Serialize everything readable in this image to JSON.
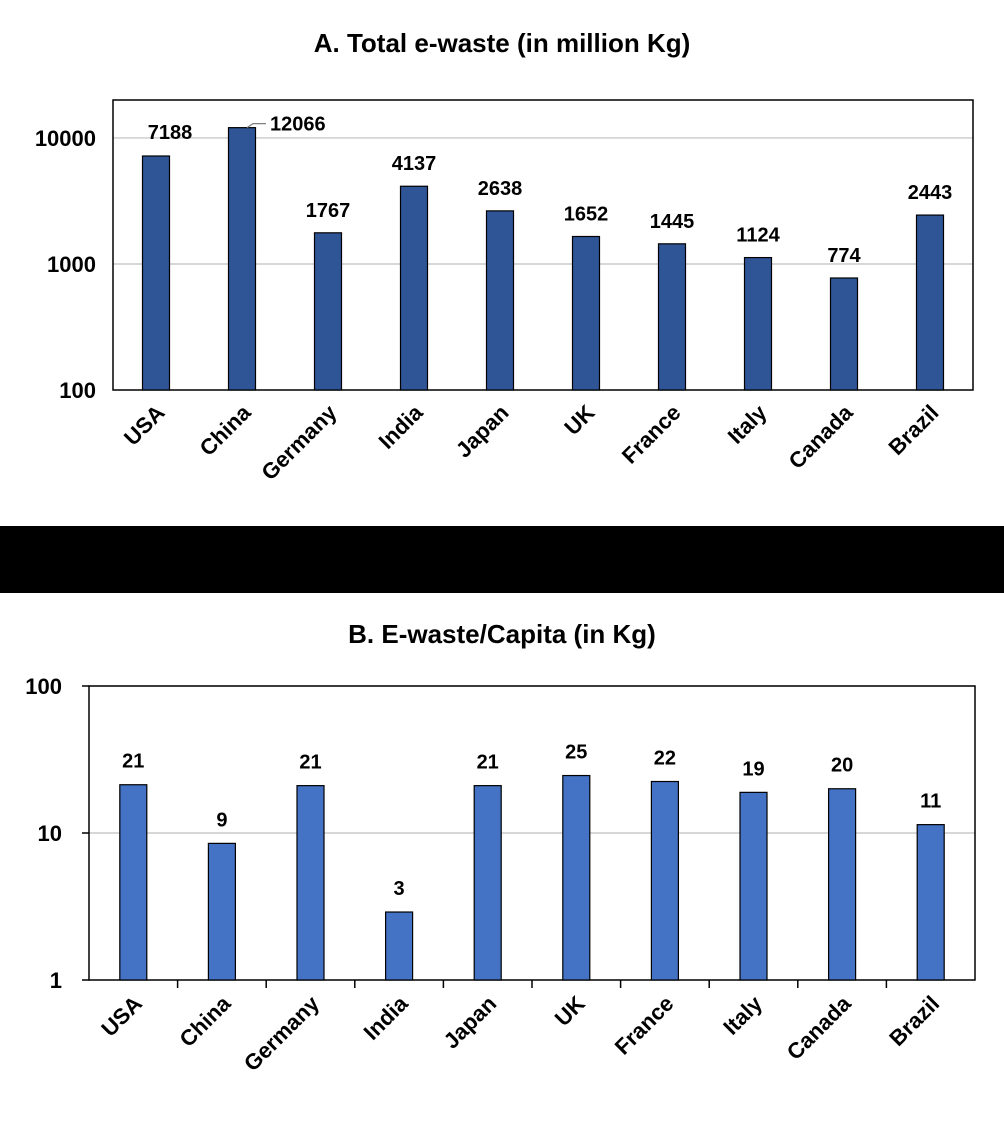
{
  "chart_data": [
    {
      "type": "bar",
      "title": "A.  Total e-waste (in million Kg)",
      "yscale": "log",
      "ylim": [
        100,
        20000
      ],
      "yticks": [
        "10000",
        "1000",
        "100"
      ],
      "ytick_values": [
        10000,
        1000,
        100
      ],
      "categories": [
        "USA",
        "China",
        "Germany",
        "India",
        "Japan",
        "UK",
        "France",
        "Italy",
        "Canada",
        "Brazil"
      ],
      "values": [
        7188,
        12066,
        1767,
        4137,
        2638,
        1652,
        1445,
        1124,
        774,
        2443
      ],
      "labels": [
        "7188",
        "12066",
        "1767",
        "4137",
        "2638",
        "1652",
        "1445",
        "1124",
        "774",
        "2443"
      ],
      "grid": true,
      "bar_color": "#2f5597"
    },
    {
      "type": "bar",
      "title": "B. E-waste/Capita (in Kg)",
      "yscale": "log",
      "ylim": [
        1,
        100
      ],
      "yticks": [
        "100",
        "10",
        "1"
      ],
      "ytick_values": [
        100,
        10,
        1
      ],
      "categories": [
        "USA",
        "China",
        "Germany",
        "India",
        "Japan",
        "UK",
        "France",
        "Italy",
        "Canada",
        "Brazil"
      ],
      "values": [
        21.3,
        8.5,
        21,
        2.9,
        21,
        24.6,
        22.4,
        18.9,
        20,
        11.4
      ],
      "labels": [
        "21",
        "9",
        "21",
        "3",
        "21",
        "25",
        "22",
        "19",
        "20",
        "11"
      ],
      "grid": true,
      "bar_color": "#4472c4"
    }
  ]
}
